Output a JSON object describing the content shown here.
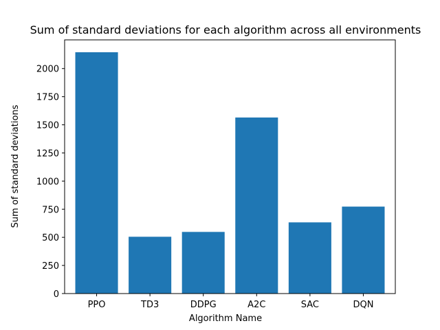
{
  "chart_data": {
    "type": "bar",
    "title": "Sum of standard deviations for each algorithm across all environments",
    "xlabel": "Algorithm Name",
    "ylabel": "Sum of standard deviations",
    "categories": [
      "PPO",
      "TD3",
      "DDPG",
      "A2C",
      "SAC",
      "DQN"
    ],
    "values": [
      2145,
      505,
      548,
      1565,
      633,
      773
    ],
    "ylim": [
      0,
      2255
    ],
    "yticks": [
      0,
      250,
      500,
      750,
      1000,
      1250,
      1500,
      1750,
      2000
    ],
    "grid": false,
    "bar_color": "#1f77b4"
  }
}
